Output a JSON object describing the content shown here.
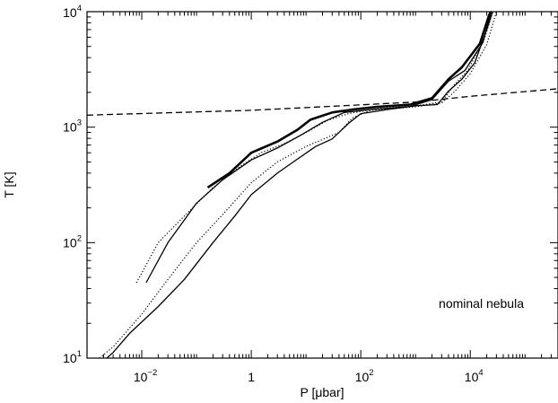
{
  "chart_data": {
    "type": "line",
    "title": "",
    "xlabel": "P [μbar]",
    "ylabel": "T [K]",
    "xscale": "log",
    "yscale": "log",
    "xlim": [
      0.001,
      400000
    ],
    "ylim": [
      10,
      10000
    ],
    "grid": false,
    "x_ticks": [
      {
        "base": "10",
        "exp": "−2",
        "value": 0.01
      },
      {
        "base": "1",
        "exp": "",
        "value": 1
      },
      {
        "base": "10",
        "exp": "2",
        "value": 100
      },
      {
        "base": "10",
        "exp": "4",
        "value": 10000
      }
    ],
    "y_ticks": [
      {
        "base": "10",
        "exp": "1",
        "value": 10
      },
      {
        "base": "10",
        "exp": "2",
        "value": 100
      },
      {
        "base": "10",
        "exp": "3",
        "value": 1000
      },
      {
        "base": "10",
        "exp": "4",
        "value": 10000
      }
    ],
    "annotation": "nominal nebula",
    "series": [
      {
        "style": "dashed",
        "points": [
          [
            0.001,
            1270
          ],
          [
            1,
            1400
          ],
          [
            100,
            1560
          ],
          [
            1000,
            1650
          ],
          [
            10000,
            1850
          ],
          [
            400000,
            2150
          ]
        ]
      },
      {
        "style": "thick-solid",
        "points": [
          [
            0.16,
            300
          ],
          [
            0.4,
            400
          ],
          [
            1,
            600
          ],
          [
            3,
            750
          ],
          [
            7,
            950
          ],
          [
            12,
            1160
          ],
          [
            30,
            1340
          ],
          [
            70,
            1420
          ],
          [
            200,
            1500
          ],
          [
            800,
            1570
          ],
          [
            2000,
            1780
          ],
          [
            4000,
            2600
          ],
          [
            7000,
            3300
          ],
          [
            15000,
            5300
          ],
          [
            22000,
            9300
          ],
          [
            23500,
            10000
          ]
        ]
      },
      {
        "style": "solid",
        "points": [
          [
            0.012,
            45
          ],
          [
            0.03,
            100
          ],
          [
            0.1,
            220
          ],
          [
            0.3,
            350
          ],
          [
            1,
            520
          ],
          [
            3,
            660
          ],
          [
            8,
            850
          ],
          [
            20,
            1100
          ],
          [
            50,
            1340
          ],
          [
            150,
            1420
          ],
          [
            800,
            1510
          ],
          [
            2000,
            1730
          ],
          [
            4000,
            2500
          ],
          [
            8000,
            3100
          ],
          [
            17000,
            5400
          ],
          [
            24000,
            10000
          ]
        ]
      },
      {
        "style": "solid",
        "points": [
          [
            0.0023,
            10
          ],
          [
            0.003,
            11.2
          ],
          [
            0.006,
            16.4
          ],
          [
            0.02,
            28
          ],
          [
            0.06,
            48
          ],
          [
            0.2,
            100
          ],
          [
            0.5,
            170
          ],
          [
            1,
            260
          ],
          [
            3,
            400
          ],
          [
            7,
            530
          ],
          [
            15,
            680
          ],
          [
            30,
            790
          ],
          [
            60,
            1080
          ],
          [
            100,
            1310
          ],
          [
            300,
            1420
          ],
          [
            1000,
            1530
          ],
          [
            2500,
            1570
          ],
          [
            4000,
            2050
          ],
          [
            7000,
            2600
          ],
          [
            12000,
            3600
          ],
          [
            20000,
            7000
          ],
          [
            25500,
            10000
          ]
        ]
      },
      {
        "style": "dotted",
        "points": [
          [
            0.0017,
            10
          ],
          [
            0.003,
            12.5
          ],
          [
            0.01,
            24
          ],
          [
            0.03,
            48
          ],
          [
            0.1,
            100
          ],
          [
            0.3,
            175
          ],
          [
            1,
            330
          ],
          [
            3,
            500
          ],
          [
            10,
            680
          ],
          [
            40,
            900
          ],
          [
            70,
            1200
          ],
          [
            150,
            1400
          ],
          [
            1000,
            1500
          ],
          [
            3000,
            1620
          ],
          [
            5000,
            2000
          ],
          [
            10000,
            2900
          ],
          [
            20000,
            5200
          ],
          [
            30000,
            10000
          ]
        ]
      },
      {
        "style": "dotted",
        "points": [
          [
            0.008,
            45
          ],
          [
            0.02,
            100
          ],
          [
            0.06,
            170
          ],
          [
            0.2,
            300
          ],
          [
            0.6,
            450
          ],
          [
            1.5,
            600
          ],
          [
            4,
            720
          ],
          [
            10,
            900
          ],
          [
            25,
            1150
          ],
          [
            60,
            1310
          ],
          [
            200,
            1450
          ],
          [
            1000,
            1530
          ],
          [
            3000,
            1650
          ],
          [
            5000,
            2300
          ],
          [
            9000,
            3100
          ],
          [
            18000,
            5800
          ],
          [
            26000,
            10000
          ]
        ]
      }
    ]
  }
}
